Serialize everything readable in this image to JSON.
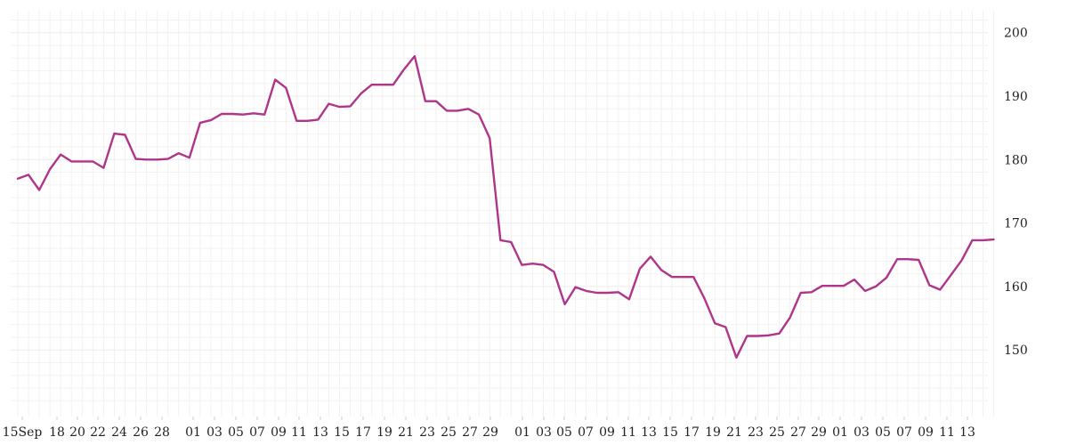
{
  "chart_data": {
    "type": "line",
    "title": "",
    "xlabel": "",
    "ylabel": "",
    "x_axis_labels": [
      "15Sep",
      "18",
      "20",
      "22",
      "24",
      "26",
      "28",
      "01",
      "03",
      "05",
      "07",
      "09",
      "11",
      "13",
      "15",
      "17",
      "19",
      "21",
      "23",
      "25",
      "27",
      "29",
      "01",
      "03",
      "05",
      "07",
      "09",
      "11",
      "13",
      "15",
      "17",
      "19",
      "21",
      "23",
      "25",
      "27",
      "29",
      "01",
      "03",
      "05",
      "07",
      "09",
      "11",
      "13"
    ],
    "yticks": [
      150,
      160,
      170,
      180,
      190,
      200
    ],
    "ylim": [
      140,
      203
    ],
    "grid": true,
    "y_axis_position": "right",
    "series": [
      {
        "color": "#b0358a",
        "values": [
          177.0,
          177.6,
          175.2,
          178.5,
          180.8,
          179.7,
          179.7,
          179.7,
          178.7,
          184.1,
          183.9,
          180.1,
          180.0,
          180.0,
          180.1,
          181.0,
          180.3,
          185.8,
          186.2,
          187.2,
          187.2,
          187.1,
          187.3,
          187.1,
          192.6,
          191.3,
          186.1,
          186.1,
          186.3,
          188.8,
          188.3,
          188.4,
          190.4,
          191.8,
          191.8,
          191.8,
          194.2,
          196.3,
          189.2,
          189.2,
          187.7,
          187.7,
          188.0,
          187.1,
          183.4,
          167.3,
          167.0,
          163.4,
          163.6,
          163.4,
          162.3,
          157.2,
          159.9,
          159.3,
          159.0,
          159.0,
          159.1,
          158.0,
          162.8,
          164.7,
          162.6,
          161.5,
          161.5,
          161.5,
          158.2,
          154.2,
          153.6,
          148.8,
          152.2,
          152.2,
          152.3,
          152.6,
          155.1,
          159.0,
          159.1,
          160.1,
          160.1,
          160.1,
          161.1,
          159.3,
          160.0,
          161.4,
          164.3,
          164.3,
          164.2,
          160.2,
          159.5,
          161.8,
          164.1,
          167.3,
          167.3,
          167.4
        ]
      }
    ]
  }
}
